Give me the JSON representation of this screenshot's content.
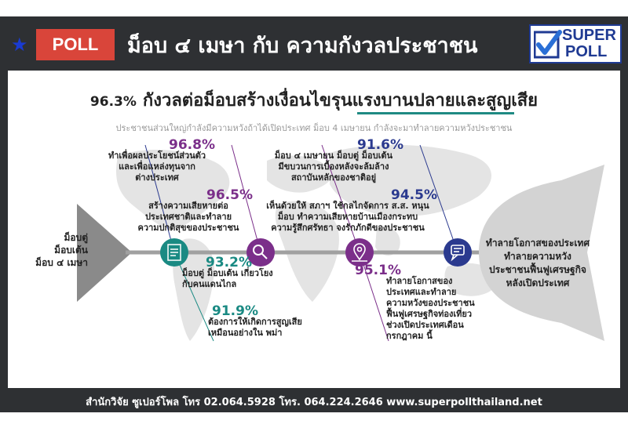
{
  "header": {
    "badge": "POLL",
    "title": "ม็อบ ๔ เมษา กับ ความกังวลประชาชน",
    "logo_line1": "SUPER",
    "logo_line2": "POLL",
    "logo_icon": "check-icon",
    "star_icon": "star-icon"
  },
  "headline": {
    "percent": "96.3%",
    "text": "กังวลต่อม็อบสร้างเงื่อนไขรุนแรงบานปลายและสูญเสีย"
  },
  "subtitle": "ประชาชนส่วนใหญ่กำลังมีความหวังถ้าได้เปิดประเทศ ม็อบ 4 เมษายน กำลังจะมาทำลายความหวังประชาชน",
  "fish_head_label": [
    "ม็อบตู่",
    "ม็อบเต้น",
    "ม็อบ ๔ เมษา"
  ],
  "fish_tail_label": [
    "ทำลายโอกาสของประเทศ",
    "ทำลายความหวัง",
    "ประชาชนฟื้นฟูเศรษฐกิจ",
    "หลังเปิดประเทศ"
  ],
  "findings": {
    "top1": {
      "percent": "96.8%",
      "lines": [
        "ทำเพื่อผลประโยชน์ส่วนตัว",
        "และเพื่อแหล่งทุนจาก",
        "ต่างประเทศ"
      ]
    },
    "top2": {
      "percent": "96.5%",
      "lines": [
        "สร้างความเสียหายต่อ",
        "ประเทศชาติและทำลาย",
        "ความปกติสุขของประชาชน"
      ]
    },
    "top3": {
      "percent": "91.6%",
      "lines": [
        "ม็อบ ๔ เมษายน ม็อบตู่ ม็อบเต้น",
        "มีขบวนการเบื้องหลังจะล้มล้าง",
        "สถาบันหลักของชาติอยู่"
      ]
    },
    "top4": {
      "percent": "94.5%",
      "lines": [
        "เห็นด้วยให้ สภาฯ ใช้กลไกจัดการ ส.ส. หนุน",
        "ม็อบ ทำความเสียหายบ้านเมืองกระทบ",
        "ความรู้สึกศรัทธา จงรักภักดีของประชาชน"
      ]
    },
    "bottom1": {
      "percent": "93.2%",
      "lines": [
        "ม็อบตู่ ม็อบเต้น เกี่ยวโยง",
        "กับคนแดนไกล"
      ]
    },
    "bottom2": {
      "percent": "91.9%",
      "lines": [
        "ต้องการให้เกิดการสูญเสีย",
        "เหมือนอย่างใน พม่า"
      ]
    },
    "bottom3": {
      "percent": "95.1%",
      "lines": [
        "ทำลายโอกาสของ",
        "ประเทศและทำลาย",
        "ความหวังของประชาชน",
        "ฟื้นฟูเศรษฐกิจท่องเที่ยว",
        "ช่วงเปิดประเทศเดือน",
        "กรกฎาคม นี้"
      ]
    }
  },
  "icons": [
    "document-icon",
    "search-icon",
    "map-pin-icon",
    "chat-icon"
  ],
  "footer": "สำนักวิจัย ซูเปอร์โพล โทร 02.064.5928  โทร. 064.224.2646 www.superpollthailand.net",
  "colors": {
    "frame": "#2e3033",
    "badge": "#d9453a",
    "purple": "#7b2f8a",
    "navy": "#2b3a8f",
    "teal": "#1a8a83",
    "star": "#1a3bd1"
  }
}
